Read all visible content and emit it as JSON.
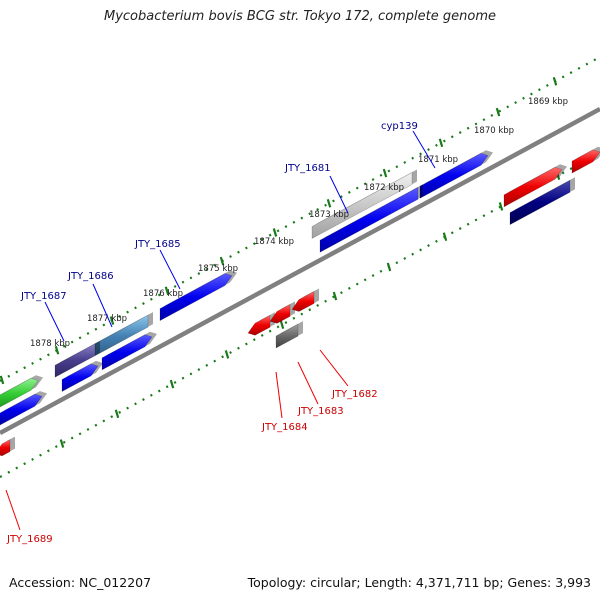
{
  "title": "Mycobacterium bovis BCG str. Tokyo 172, complete genome",
  "footer": {
    "accession": "Accession: NC_012207",
    "summary": "Topology: circular; Length: 4,371,711 bp; Genes: 3,993"
  },
  "colors": {
    "forward_gene": "#0000ee",
    "reverse_gene": "#ee0000",
    "backbone": "#808080",
    "tick": "#1a7a1a",
    "forward_label": "#00008b",
    "reverse_label": "#cc0000"
  },
  "ticks": [
    {
      "label": "1869 kbp"
    },
    {
      "label": "1870 kbp"
    },
    {
      "label": "1871 kbp"
    },
    {
      "label": "1872 kbp"
    },
    {
      "label": "1873 kbp"
    },
    {
      "label": "1874 kbp"
    },
    {
      "label": "1875 kbp"
    },
    {
      "label": "1876 kbp"
    },
    {
      "label": "1877 kbp"
    },
    {
      "label": "1878 kbp"
    }
  ],
  "forward_labels": [
    "cyp139",
    "JTY_1681",
    "JTY_1685",
    "JTY_1686",
    "JTY_1687"
  ],
  "reverse_labels": [
    "JTY_1682",
    "JTY_1683",
    "JTY_1684",
    "JTY_1689"
  ]
}
